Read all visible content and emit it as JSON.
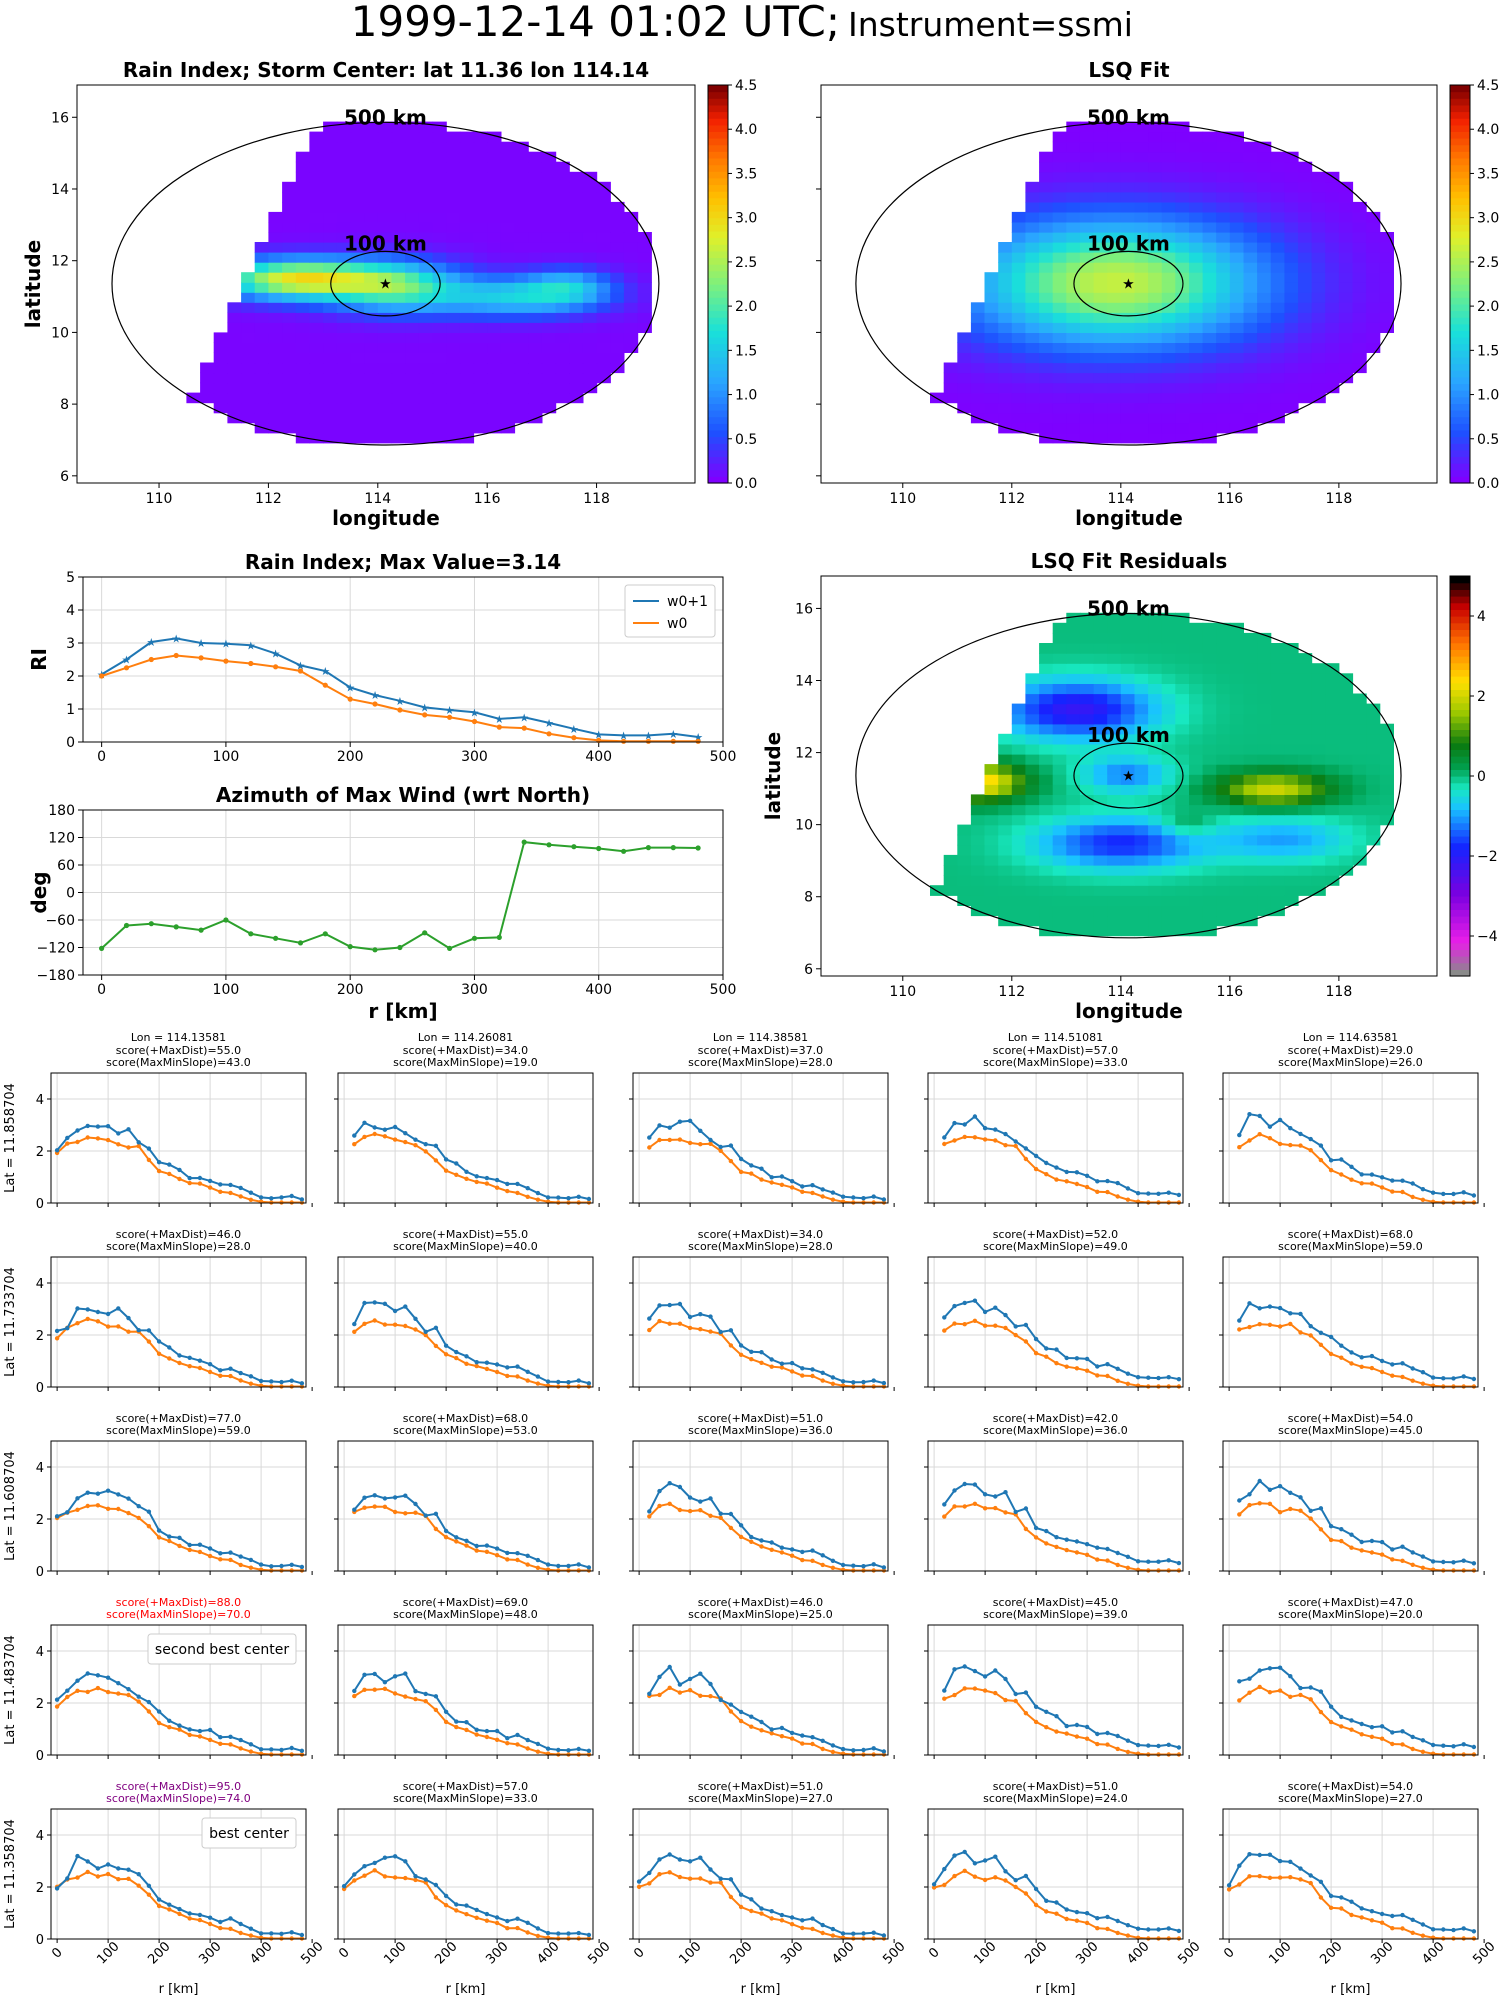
{
  "figure": {
    "title_date": "1999-12-14 01:02 UTC;",
    "title_inst": "Instrument=ssmi"
  },
  "colors": {
    "blue": "#1f77b4",
    "orange": "#ff7f0e",
    "green": "#2ca02c",
    "grid": "#d9d9d9",
    "red_label": "#ff0000",
    "purple_label": "#800080"
  },
  "chart_data": [
    {
      "id": "rain-map",
      "type": "heatmap",
      "title": "Rain Index; Storm Center: lat 11.36 lon 114.14",
      "xlabel": "longitude",
      "ylabel": "latitude",
      "xticks": [
        "110",
        "112",
        "114",
        "116",
        "118"
      ],
      "yticks": [
        "6",
        "8",
        "10",
        "12",
        "14",
        "16"
      ],
      "xlim": [
        108.5,
        119.8
      ],
      "ylim": [
        5.8,
        16.9
      ],
      "colorbar": {
        "ticks": [
          "0.0",
          "0.5",
          "1.0",
          "1.5",
          "2.0",
          "2.5",
          "3.0",
          "3.5",
          "4.0",
          "4.5"
        ],
        "range": [
          0,
          4.5
        ]
      },
      "annotations": [
        "500 km",
        "100 km"
      ],
      "center": {
        "lon": 114.14,
        "lat": 11.36
      }
    },
    {
      "id": "lsq-map",
      "type": "heatmap",
      "title": "LSQ Fit",
      "xlabel": "longitude",
      "xticks": [
        "110",
        "112",
        "114",
        "116",
        "118"
      ],
      "xlim": [
        108.5,
        119.8
      ],
      "ylim": [
        5.8,
        16.9
      ],
      "colorbar": {
        "ticks": [
          "0.0",
          "0.5",
          "1.0",
          "1.5",
          "2.0",
          "2.5",
          "3.0",
          "3.5",
          "4.0",
          "4.5"
        ],
        "range": [
          0,
          4.5
        ]
      },
      "annotations": [
        "500 km",
        "100 km"
      ],
      "center": {
        "lon": 114.14,
        "lat": 11.36
      }
    },
    {
      "id": "rain-profile",
      "type": "line",
      "title": "Rain Index; Max Value=3.14",
      "ylabel": "RI",
      "xlim": [
        -15,
        500
      ],
      "ylim": [
        0,
        5
      ],
      "xticks": [
        "0",
        "100",
        "200",
        "300",
        "400",
        "500"
      ],
      "yticks": [
        "0",
        "1",
        "2",
        "3",
        "4",
        "5"
      ],
      "legend": "top-right",
      "x": [
        0,
        20,
        40,
        60,
        80,
        100,
        120,
        140,
        160,
        180,
        200,
        220,
        240,
        260,
        280,
        300,
        320,
        340,
        360,
        380,
        400,
        420,
        440,
        460,
        480
      ],
      "series": [
        {
          "name": "w0+1",
          "values": [
            2.05,
            2.5,
            3.03,
            3.14,
            3.0,
            2.98,
            2.93,
            2.68,
            2.32,
            2.15,
            1.65,
            1.42,
            1.25,
            1.05,
            0.97,
            0.9,
            0.7,
            0.75,
            0.58,
            0.4,
            0.23,
            0.2,
            0.2,
            0.25,
            0.15
          ]
        },
        {
          "name": "w0",
          "values": [
            2.0,
            2.25,
            2.5,
            2.62,
            2.55,
            2.45,
            2.38,
            2.28,
            2.15,
            1.72,
            1.3,
            1.15,
            0.97,
            0.82,
            0.75,
            0.62,
            0.45,
            0.42,
            0.25,
            0.13,
            0.05,
            0.02,
            0.02,
            0.02,
            0.02
          ]
        }
      ]
    },
    {
      "id": "azimuth",
      "type": "line",
      "title": "Azimuth of Max Wind (wrt North)",
      "xlabel": "r [km]",
      "ylabel": "deg",
      "xlim": [
        -15,
        500
      ],
      "ylim": [
        -180,
        180
      ],
      "xticks": [
        "0",
        "100",
        "200",
        "300",
        "400",
        "500"
      ],
      "yticks": [
        "−180",
        "−120",
        "−60",
        "0",
        "60",
        "120",
        "180"
      ],
      "x": [
        0,
        20,
        40,
        60,
        80,
        100,
        120,
        140,
        160,
        180,
        200,
        220,
        240,
        260,
        280,
        300,
        320,
        340,
        360,
        380,
        400,
        420,
        440,
        460,
        480
      ],
      "series": [
        {
          "values": [
            -122,
            -72,
            -68,
            -75,
            -82,
            -60,
            -90,
            -100,
            -110,
            -90,
            -118,
            -125,
            -120,
            -88,
            -122,
            -100,
            -98,
            110,
            104,
            100,
            96,
            90,
            98,
            98,
            97
          ]
        }
      ]
    },
    {
      "id": "residuals",
      "type": "heatmap",
      "title": "LSQ Fit Residuals",
      "xlabel": "longitude",
      "ylabel": "latitude",
      "xticks": [
        "110",
        "112",
        "114",
        "116",
        "118"
      ],
      "yticks": [
        "6",
        "8",
        "10",
        "12",
        "14",
        "16"
      ],
      "xlim": [
        108.5,
        119.8
      ],
      "ylim": [
        5.8,
        16.9
      ],
      "colorbar": {
        "ticks": [
          "−4",
          "−2",
          "0",
          "2",
          "4"
        ],
        "range": [
          -5,
          5
        ]
      },
      "annotations": [
        "500 km",
        "100 km"
      ],
      "center": {
        "lon": 114.14,
        "lat": 11.36
      }
    }
  ],
  "grid": {
    "col_titles": [
      "Lon = 114.13581",
      "Lon = 114.26081",
      "Lon = 114.38581",
      "Lon = 114.51081",
      "Lon = 114.63581"
    ],
    "row_labels": [
      "Lat = 11.858704",
      "Lat = 11.733704",
      "Lat = 11.608704",
      "Lat = 11.483704",
      "Lat = 11.358704"
    ],
    "xlabel": "r [km]",
    "xticks": [
      "0",
      "100",
      "200",
      "300",
      "400",
      "500"
    ],
    "yticks": [
      "0",
      "2",
      "4"
    ],
    "scores": [
      [
        [
          "score(+MaxDist)=55.0",
          "score(MaxMinSlope)=43.0"
        ],
        [
          "score(+MaxDist)=34.0",
          "score(MaxMinSlope)=19.0"
        ],
        [
          "score(+MaxDist)=37.0",
          "score(MaxMinSlope)=28.0"
        ],
        [
          "score(+MaxDist)=57.0",
          "score(MaxMinSlope)=33.0"
        ],
        [
          "score(+MaxDist)=29.0",
          "score(MaxMinSlope)=26.0"
        ]
      ],
      [
        [
          "score(+MaxDist)=46.0",
          "score(MaxMinSlope)=28.0"
        ],
        [
          "score(+MaxDist)=55.0",
          "score(MaxMinSlope)=40.0"
        ],
        [
          "score(+MaxDist)=34.0",
          "score(MaxMinSlope)=28.0"
        ],
        [
          "score(+MaxDist)=52.0",
          "score(MaxMinSlope)=49.0"
        ],
        [
          "score(+MaxDist)=68.0",
          "score(MaxMinSlope)=59.0"
        ]
      ],
      [
        [
          "score(+MaxDist)=77.0",
          "score(MaxMinSlope)=59.0"
        ],
        [
          "score(+MaxDist)=68.0",
          "score(MaxMinSlope)=53.0"
        ],
        [
          "score(+MaxDist)=51.0",
          "score(MaxMinSlope)=36.0"
        ],
        [
          "score(+MaxDist)=42.0",
          "score(MaxMinSlope)=36.0"
        ],
        [
          "score(+MaxDist)=54.0",
          "score(MaxMinSlope)=45.0"
        ]
      ],
      [
        [
          "score(+MaxDist)=88.0",
          "score(MaxMinSlope)=70.0"
        ],
        [
          "score(+MaxDist)=69.0",
          "score(MaxMinSlope)=48.0"
        ],
        [
          "score(+MaxDist)=46.0",
          "score(MaxMinSlope)=25.0"
        ],
        [
          "score(+MaxDist)=45.0",
          "score(MaxMinSlope)=39.0"
        ],
        [
          "score(+MaxDist)=47.0",
          "score(MaxMinSlope)=20.0"
        ]
      ],
      [
        [
          "score(+MaxDist)=95.0",
          "score(MaxMinSlope)=74.0"
        ],
        [
          "score(+MaxDist)=57.0",
          "score(MaxMinSlope)=33.0"
        ],
        [
          "score(+MaxDist)=51.0",
          "score(MaxMinSlope)=27.0"
        ],
        [
          "score(+MaxDist)=51.0",
          "score(MaxMinSlope)=24.0"
        ],
        [
          "score(+MaxDist)=54.0",
          "score(MaxMinSlope)=27.0"
        ]
      ]
    ],
    "highlights": {
      "second_best": "second best center",
      "best": "best center"
    }
  }
}
